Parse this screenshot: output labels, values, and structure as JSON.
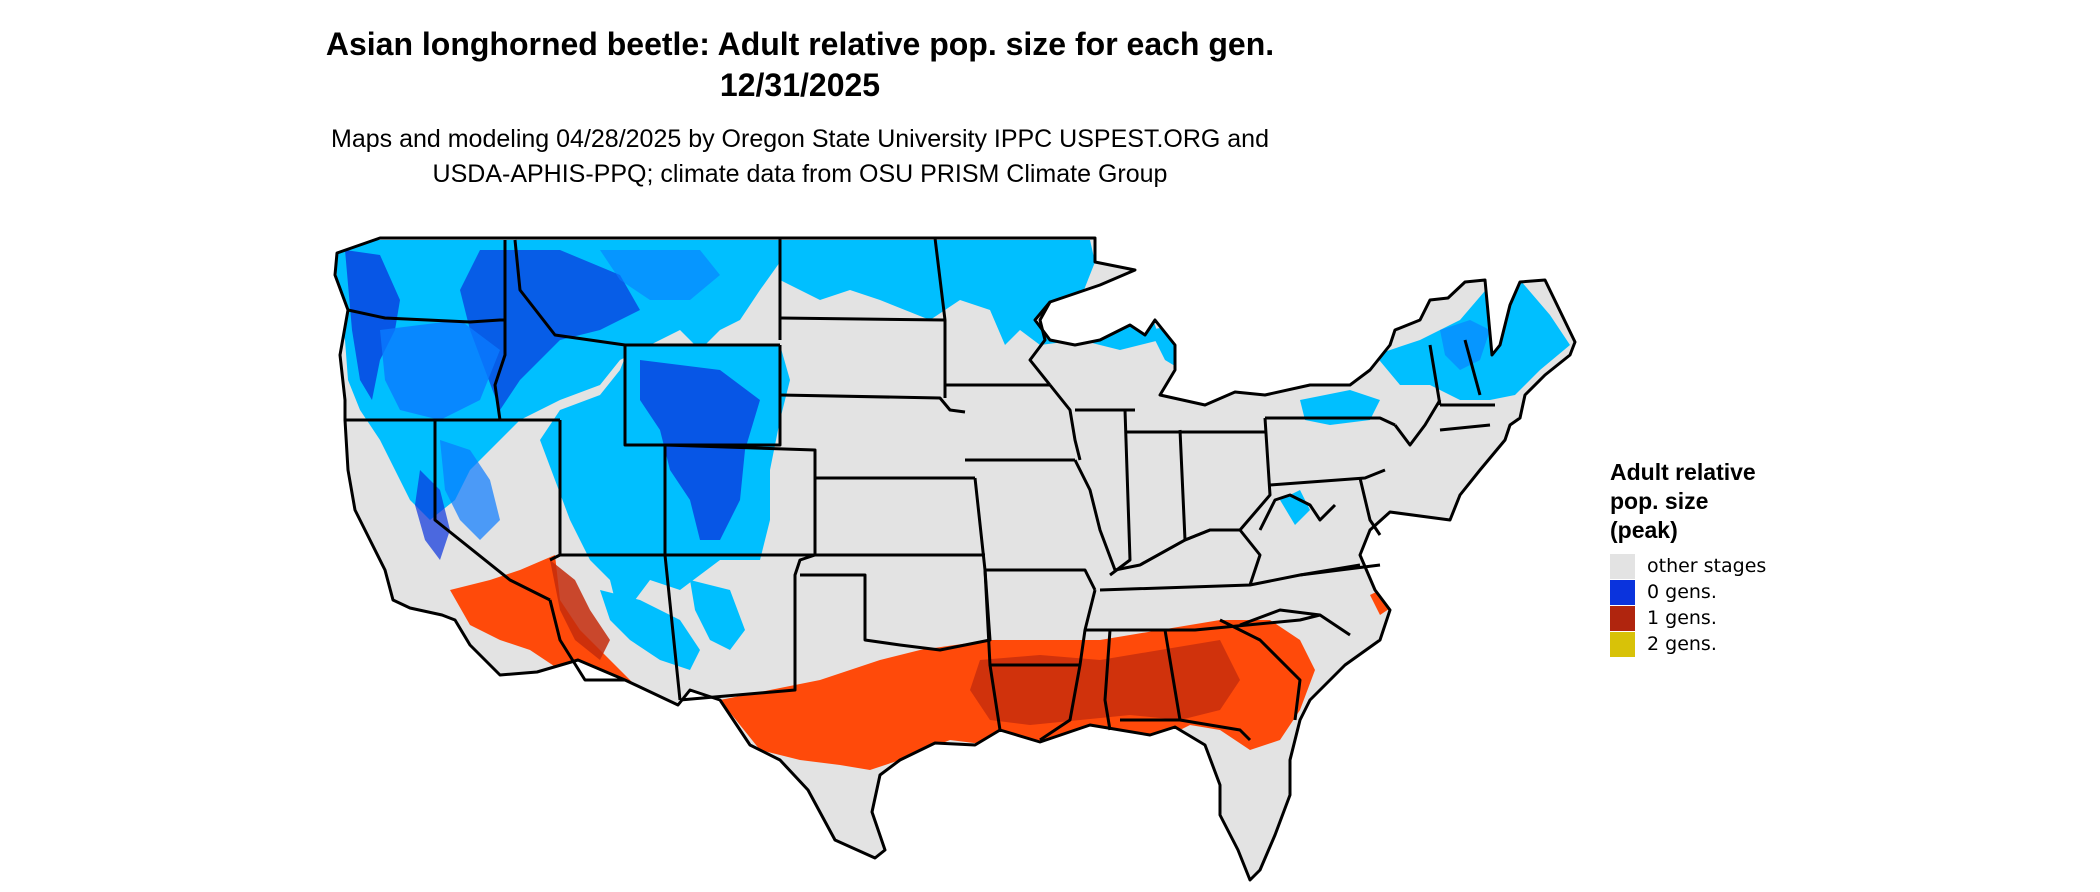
{
  "header": {
    "title_line1": "Asian longhorned beetle: Adult relative pop. size for each gen.",
    "title_line2": "12/31/2025",
    "subtitle_line1": "Maps and modeling 04/28/2025 by Oregon State University IPPC USPEST.ORG and",
    "subtitle_line2": "USDA-APHIS-PPQ; climate data from OSU PRISM Climate Group"
  },
  "legend": {
    "title": [
      "Adult relative",
      "pop. size",
      "(peak)"
    ],
    "items": [
      {
        "label": "other stages",
        "color": "#e3e3e3"
      },
      {
        "label": "0 gens.",
        "color": "#0a33dd"
      },
      {
        "label": "1 gens.",
        "color": "#b0250e"
      },
      {
        "label": "2 gens.",
        "color": "#d8c208"
      }
    ]
  },
  "colors": {
    "land": "#e3e3e3",
    "cold_light": "#00bfff",
    "cold_mid": "#0a7bff",
    "cold_dark": "#0a33dd",
    "warm_light": "#ff4a0a",
    "warm_dark": "#c42c0c",
    "border": "#000000"
  }
}
